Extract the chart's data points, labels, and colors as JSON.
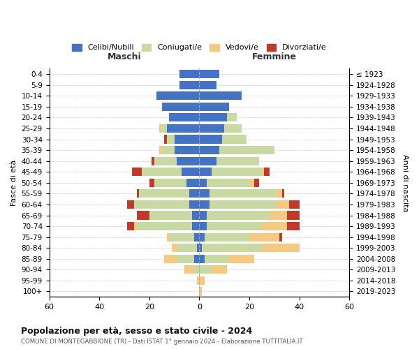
{
  "age_groups": [
    "0-4",
    "5-9",
    "10-14",
    "15-19",
    "20-24",
    "25-29",
    "30-34",
    "35-39",
    "40-44",
    "45-49",
    "50-54",
    "55-59",
    "60-64",
    "65-69",
    "70-74",
    "75-79",
    "80-84",
    "85-89",
    "90-94",
    "95-99",
    "100+"
  ],
  "birth_years": [
    "2019-2023",
    "2014-2018",
    "2009-2013",
    "2004-2008",
    "1999-2003",
    "1994-1998",
    "1989-1993",
    "1984-1988",
    "1979-1983",
    "1974-1978",
    "1969-1973",
    "1964-1968",
    "1959-1963",
    "1954-1958",
    "1949-1953",
    "1944-1948",
    "1939-1943",
    "1934-1938",
    "1929-1933",
    "1924-1928",
    "≤ 1923"
  ],
  "maschi": {
    "celibi": [
      8,
      8,
      17,
      15,
      12,
      13,
      10,
      10,
      9,
      7,
      5,
      4,
      4,
      3,
      3,
      2,
      1,
      2,
      0,
      0,
      0
    ],
    "coniugati": [
      0,
      0,
      0,
      0,
      0,
      2,
      3,
      5,
      9,
      16,
      13,
      20,
      22,
      17,
      22,
      10,
      8,
      7,
      2,
      0,
      0
    ],
    "vedovi": [
      0,
      0,
      0,
      0,
      0,
      1,
      0,
      1,
      0,
      0,
      0,
      0,
      0,
      0,
      1,
      1,
      2,
      5,
      4,
      1,
      0
    ],
    "divorziati": [
      0,
      0,
      0,
      0,
      0,
      0,
      1,
      0,
      1,
      4,
      2,
      1,
      3,
      5,
      3,
      0,
      0,
      0,
      0,
      0,
      0
    ]
  },
  "femmine": {
    "nubili": [
      8,
      7,
      17,
      12,
      11,
      10,
      9,
      8,
      7,
      5,
      3,
      4,
      4,
      3,
      3,
      2,
      1,
      2,
      0,
      0,
      0
    ],
    "coniugate": [
      0,
      0,
      0,
      0,
      4,
      7,
      10,
      22,
      17,
      20,
      17,
      27,
      27,
      25,
      22,
      18,
      24,
      10,
      5,
      0,
      0
    ],
    "vedove": [
      0,
      0,
      0,
      0,
      0,
      0,
      0,
      0,
      0,
      1,
      2,
      2,
      5,
      7,
      10,
      12,
      15,
      10,
      6,
      2,
      1
    ],
    "divorziate": [
      0,
      0,
      0,
      0,
      0,
      0,
      0,
      0,
      0,
      2,
      2,
      1,
      4,
      5,
      5,
      1,
      0,
      0,
      0,
      0,
      0
    ]
  },
  "colors": {
    "celibi_nubili": "#4472c4",
    "coniugati_e": "#c8d9a2",
    "vedovi_e": "#f5c97f",
    "divorziati_e": "#c0392b"
  },
  "title": "Popolazione per età, sesso e stato civile - 2024",
  "subtitle": "COMUNE DI MONTEGABBIONE (TR) - Dati ISTAT 1° gennaio 2024 - Elaborazione TUTTITALIA.IT",
  "xlabel_left": "Maschi",
  "xlabel_right": "Femmine",
  "ylabel_left": "Fasce di età",
  "ylabel_right": "Anni di nascita",
  "xlim": 60,
  "legend_labels": [
    "Celibi/Nubili",
    "Coniugati/e",
    "Vedovi/e",
    "Divorziati/e"
  ],
  "bg_color": "#ffffff",
  "grid_color": "#cccccc"
}
